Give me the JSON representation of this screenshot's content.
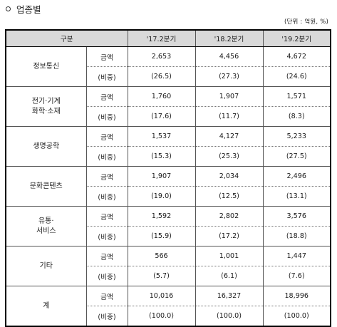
{
  "section_title": "업종별",
  "unit_note": "(단위 : 억원, %)",
  "columns": {
    "category": "구분",
    "q17": "'17.2분기",
    "q18": "'18.2분기",
    "q19": "'19.2분기"
  },
  "rows": [
    {
      "category_line1": "정보통신",
      "category_line2": "",
      "amount_label": "금액",
      "ratio_label": "(비중)",
      "amount": [
        "2,653",
        "4,456",
        "4,672"
      ],
      "ratio": [
        "(26.5)",
        "(27.3)",
        "(24.6)"
      ]
    },
    {
      "category_line1": "전기·기계",
      "category_line2": "화학·소재",
      "amount_label": "금액",
      "ratio_label": "(비중)",
      "amount": [
        "1,760",
        "1,907",
        "1,571"
      ],
      "ratio": [
        "(17.6)",
        "(11.7)",
        "(8.3)"
      ]
    },
    {
      "category_line1": "생명공학",
      "category_line2": "",
      "amount_label": "금액",
      "ratio_label": "(비중)",
      "amount": [
        "1,537",
        "4,127",
        "5,233"
      ],
      "ratio": [
        "(15.3)",
        "(25.3)",
        "(27.5)"
      ]
    },
    {
      "category_line1": "문화콘텐츠",
      "category_line2": "",
      "amount_label": "금액",
      "ratio_label": "(비중)",
      "amount": [
        "1,907",
        "2,034",
        "2,496"
      ],
      "ratio": [
        "(19.0)",
        "(12.5)",
        "(13.1)"
      ]
    },
    {
      "category_line1": "유통·",
      "category_line2": "서비스",
      "amount_label": "금액",
      "ratio_label": "(비중)",
      "amount": [
        "1,592",
        "2,802",
        "3,576"
      ],
      "ratio": [
        "(15.9)",
        "(17.2)",
        "(18.8)"
      ]
    },
    {
      "category_line1": "기타",
      "category_line2": "",
      "amount_label": "금액",
      "ratio_label": "(비중)",
      "amount": [
        "566",
        "1,001",
        "1,447"
      ],
      "ratio": [
        "(5.7)",
        "(6.1)",
        "(7.6)"
      ]
    },
    {
      "category_line1": "계",
      "category_line2": "",
      "amount_label": "금액",
      "ratio_label": "(비중)",
      "amount": [
        "10,016",
        "16,327",
        "18,996"
      ],
      "ratio": [
        "(100.0)",
        "(100.0)",
        "(100.0)"
      ]
    }
  ]
}
